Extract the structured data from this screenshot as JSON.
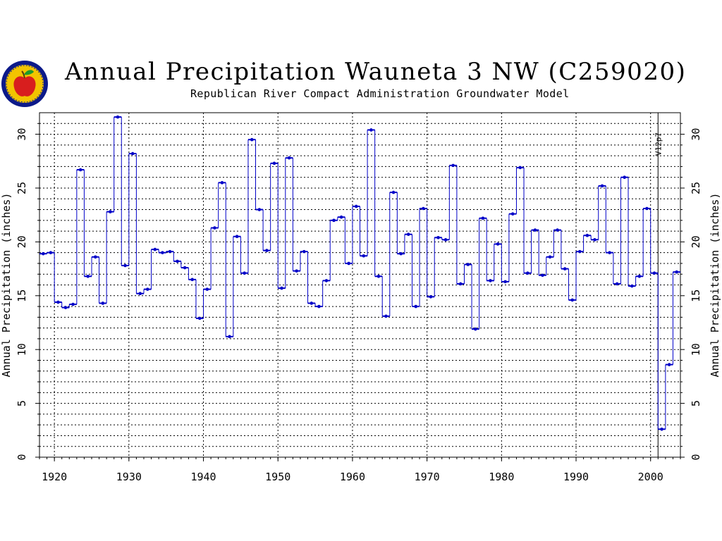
{
  "title": "Annual Precipitation Wauneta 3 NW (C259020)",
  "subtitle": "Republican River Compact Administration Groundwater Model",
  "logo": {
    "icon": "apple-seal-icon",
    "colors": {
      "ring": "#0c1a8a",
      "seal": "#f2c400",
      "apple": "#d81e1e",
      "leaf": "#1d9a2a"
    }
  },
  "colors": {
    "series": "#0000c8",
    "vertical_connector": "#0000c8",
    "grid": "#000000"
  },
  "chart_data": {
    "type": "line",
    "step": true,
    "title": "Annual Precipitation Wauneta 3 NW (C259020)",
    "subtitle": "Republican River Compact Administration Groundwater Model",
    "xlabel": "",
    "ylabel": "Annual Precipitation (inches)",
    "ylabel_right": "Annual Precipitation (inches)",
    "xlim": [
      1918,
      2004
    ],
    "ylim": [
      0,
      32
    ],
    "x_ticks": [
      1920,
      1930,
      1940,
      1950,
      1960,
      1970,
      1980,
      1990,
      2000
    ],
    "y_ticks": [
      0,
      5,
      10,
      15,
      20,
      25,
      30
    ],
    "grid": true,
    "marker_line": {
      "x": 2001,
      "label": "V12p7"
    },
    "series": [
      {
        "x": [
          1918,
          1919,
          1920,
          1921,
          1922,
          1923,
          1924,
          1925,
          1926,
          1927,
          1928,
          1929,
          1930,
          1931,
          1932,
          1933,
          1934,
          1935,
          1936,
          1937,
          1938,
          1939,
          1940,
          1941,
          1942,
          1943,
          1944,
          1945,
          1946,
          1947,
          1948,
          1949,
          1950,
          1951,
          1952,
          1953,
          1954,
          1955,
          1956,
          1957,
          1958,
          1959,
          1960,
          1961,
          1962,
          1963,
          1964,
          1965,
          1966,
          1967,
          1968,
          1969,
          1970,
          1971,
          1972,
          1973,
          1974,
          1975,
          1976,
          1977,
          1978,
          1979,
          1980,
          1981,
          1982,
          1983,
          1984,
          1985,
          1986,
          1987,
          1988,
          1989,
          1990,
          1991,
          1992,
          1993,
          1994,
          1995,
          1996,
          1997,
          1998,
          1999,
          2000,
          2001,
          2002,
          2003
        ],
        "values": [
          18.9,
          19.0,
          14.4,
          13.9,
          14.2,
          26.7,
          16.8,
          18.6,
          14.3,
          22.8,
          31.6,
          17.8,
          28.2,
          15.2,
          15.6,
          19.3,
          19.0,
          19.1,
          18.2,
          17.6,
          16.5,
          12.9,
          15.6,
          21.3,
          25.5,
          11.2,
          20.5,
          17.1,
          29.5,
          23.0,
          19.2,
          27.3,
          15.7,
          27.8,
          17.3,
          19.1,
          14.3,
          14.0,
          16.4,
          22.0,
          22.3,
          18.0,
          23.3,
          18.7,
          30.4,
          16.8,
          13.1,
          24.6,
          18.9,
          20.7,
          14.0,
          23.1,
          14.9,
          20.4,
          20.2,
          27.1,
          16.1,
          17.9,
          11.9,
          22.2,
          16.4,
          19.8,
          16.3,
          22.6,
          26.9,
          17.1,
          21.1,
          16.9,
          18.6,
          21.1,
          17.5,
          14.6,
          19.1,
          20.6,
          20.2,
          25.2,
          19.0,
          16.1,
          26.0,
          15.9,
          16.8,
          23.1,
          17.1,
          2.6,
          8.6,
          17.2
        ]
      }
    ]
  }
}
